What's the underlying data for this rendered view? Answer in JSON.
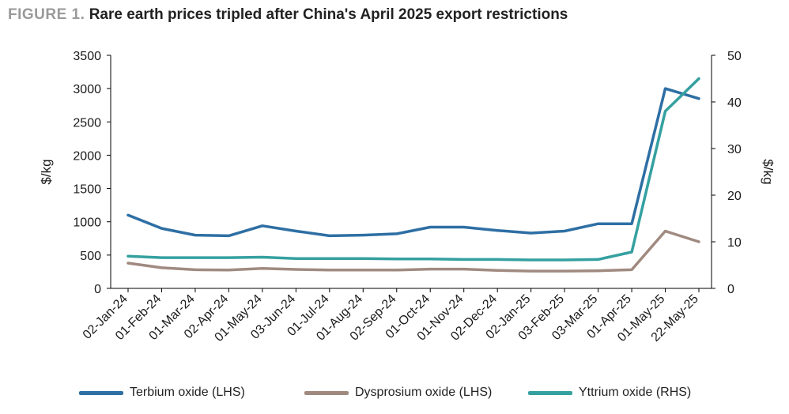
{
  "figure": {
    "label": "FIGURE 1.",
    "title": "Rare earth prices tripled after China's April 2025 export restrictions"
  },
  "chart_data": {
    "type": "line",
    "title": "Rare earth prices tripled after China's April 2025 export restrictions",
    "categories": [
      "02-Jan-24",
      "01-Feb-24",
      "01-Mar-24",
      "02-Apr-24",
      "01-May-24",
      "03-Jun-24",
      "01-Jul-24",
      "01-Aug-24",
      "02-Sep-24",
      "01-Oct-24",
      "01-Nov-24",
      "02-Dec-24",
      "02-Jan-25",
      "03-Feb-25",
      "03-Mar-25",
      "01-Apr-25",
      "01-May-25",
      "22-May-25"
    ],
    "ylabel_left": "$/kg",
    "ylabel_right": "$/kg",
    "ylim_left": [
      0,
      3500
    ],
    "ylim_right": [
      0,
      50
    ],
    "yticks_left": [
      0,
      500,
      1000,
      1500,
      2000,
      2500,
      3000,
      3500
    ],
    "yticks_right": [
      0,
      10,
      20,
      30,
      40,
      50
    ],
    "grid": false,
    "legend_position": "bottom",
    "series": [
      {
        "name": "Terbium oxide (LHS)",
        "axis": "left",
        "color": "#2E6FA4",
        "values": [
          1100,
          900,
          800,
          790,
          940,
          860,
          790,
          800,
          820,
          920,
          920,
          870,
          830,
          860,
          970,
          970,
          3000,
          2850
        ]
      },
      {
        "name": "Dysprosium oxide (LHS)",
        "axis": "left",
        "color": "#A08A80",
        "values": [
          380,
          310,
          280,
          275,
          300,
          285,
          275,
          275,
          275,
          290,
          290,
          270,
          260,
          260,
          265,
          280,
          860,
          700
        ]
      },
      {
        "name": "Yttrium oxide (RHS)",
        "axis": "right",
        "color": "#35A0A0",
        "values": [
          6.9,
          6.6,
          6.6,
          6.6,
          6.7,
          6.4,
          6.4,
          6.4,
          6.3,
          6.3,
          6.2,
          6.2,
          6.1,
          6.1,
          6.2,
          7.8,
          38,
          45
        ]
      }
    ]
  }
}
